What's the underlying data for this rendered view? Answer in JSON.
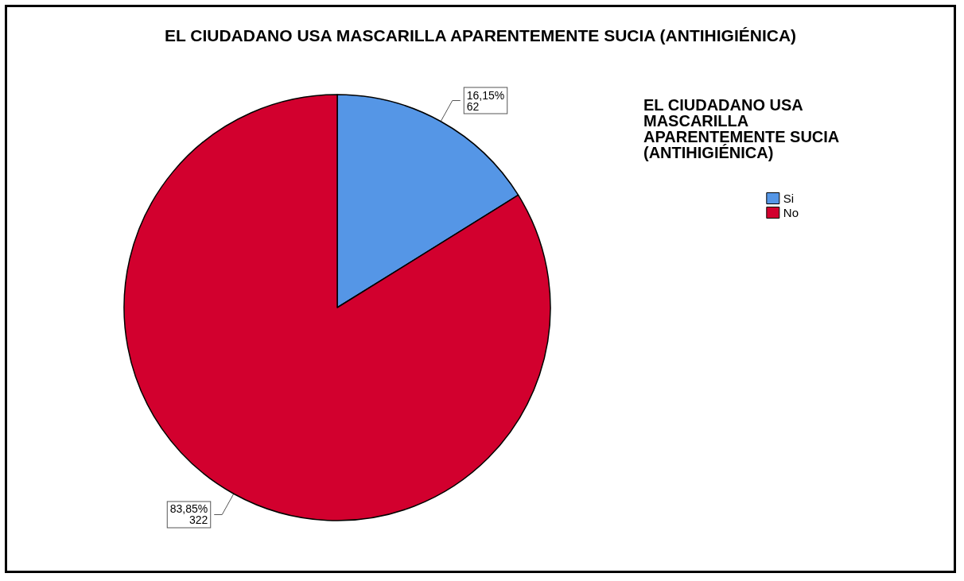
{
  "chart_data": {
    "type": "pie",
    "title": "EL CIUDADANO USA MASCARILLA APARENTEMENTE SUCIA (ANTIHIGIÉNICA)",
    "legend_title": "EL CIUDADANO USA MASCARILLA APARENTEMENTE SUCIA (ANTIHIGIÉNICA)",
    "categories": [
      "Si",
      "No"
    ],
    "values": [
      62,
      322
    ],
    "colors": [
      "#5596e6",
      "#d2002e"
    ],
    "value_labels": [
      "16,15%\n62",
      "83,85%\n322"
    ],
    "legend": "top right"
  }
}
